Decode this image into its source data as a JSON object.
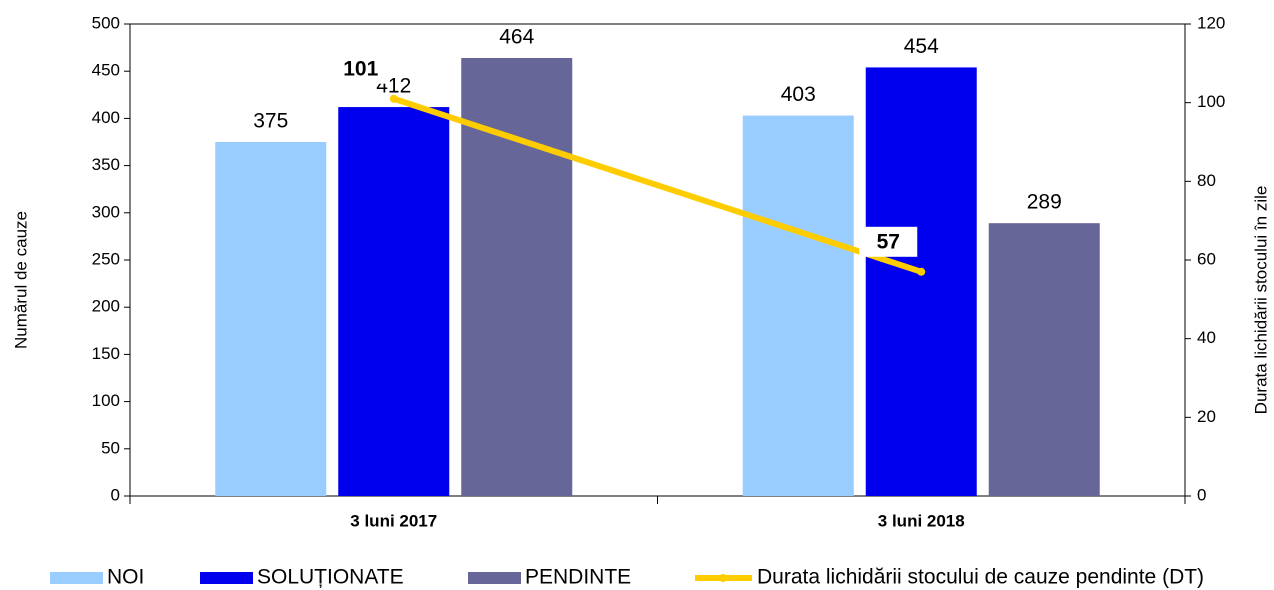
{
  "chart_data": {
    "type": "bar",
    "categories": [
      "3 luni 2017",
      "3 luni 2018"
    ],
    "y_label": "Numărul de cauze",
    "y2_label": "Durata lichidării stocului în zile",
    "ylim": [
      0,
      500
    ],
    "yticks": [
      0,
      50,
      100,
      150,
      200,
      250,
      300,
      350,
      400,
      450,
      500
    ],
    "y2lim": [
      0,
      120
    ],
    "y2ticks": [
      0,
      20,
      40,
      60,
      80,
      100,
      120
    ],
    "legend": "bottom",
    "series": [
      {
        "name": "NOI",
        "color": "#99ccff",
        "values": [
          375,
          403
        ]
      },
      {
        "name": "SOLUȚIONATE",
        "color": "#0000ee",
        "values": [
          412,
          454
        ]
      },
      {
        "name": "PENDINTE",
        "color": "#666699",
        "values": [
          464,
          289
        ]
      },
      {
        "name": "Durata lichidării stocului de cauze pendinte (DT)",
        "color": "#ffcc00",
        "type": "line",
        "axis": "y2",
        "values": [
          101,
          57
        ]
      }
    ]
  }
}
